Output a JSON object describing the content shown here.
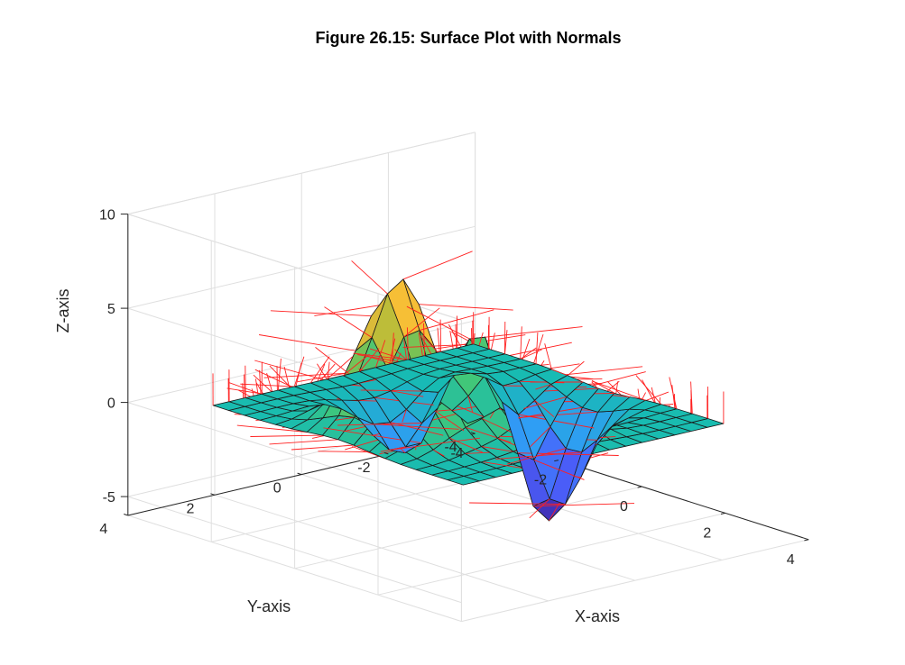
{
  "chart_data": {
    "type": "surface",
    "title": "Figure 26.15: Surface Plot with Normals",
    "xlabel": "X-axis",
    "ylabel": "Y-axis",
    "zlabel": "Z-axis",
    "xlim": [
      -4,
      4
    ],
    "ylim": [
      -4,
      4
    ],
    "zlim": [
      -6,
      10
    ],
    "x_ticks": [
      -4,
      -2,
      0,
      2,
      4
    ],
    "y_ticks": [
      -4,
      -2,
      0,
      2,
      4
    ],
    "z_ticks": [
      -5,
      0,
      5,
      10
    ],
    "x_tick_labels": [
      "-4",
      "-2",
      "0",
      "2",
      "4"
    ],
    "y_tick_labels": [
      "-4",
      "-2",
      "0",
      "2",
      "4"
    ],
    "z_tick_labels": [
      "-5",
      "0",
      "5",
      "10"
    ],
    "grid": true,
    "colormap": [
      "#3e26a8",
      "#4b60fc",
      "#2f9df5",
      "#17bbb3",
      "#3fc77b",
      "#a4be39",
      "#f6ba39",
      "#f9fb15"
    ],
    "normals_color": "#ff0000",
    "surface": {
      "function": "3*(1-x)^2*exp(-x^2-(y+1)^2) - 10*(x/5-x^3-y^5)*exp(-x^2-y^2) - 1/3*exp(-(x+1)^2-y^2)",
      "x_start": -3,
      "x_end": 3,
      "x_count": 17,
      "y_start": -3,
      "y_end": 3,
      "y_count": 17
    }
  }
}
